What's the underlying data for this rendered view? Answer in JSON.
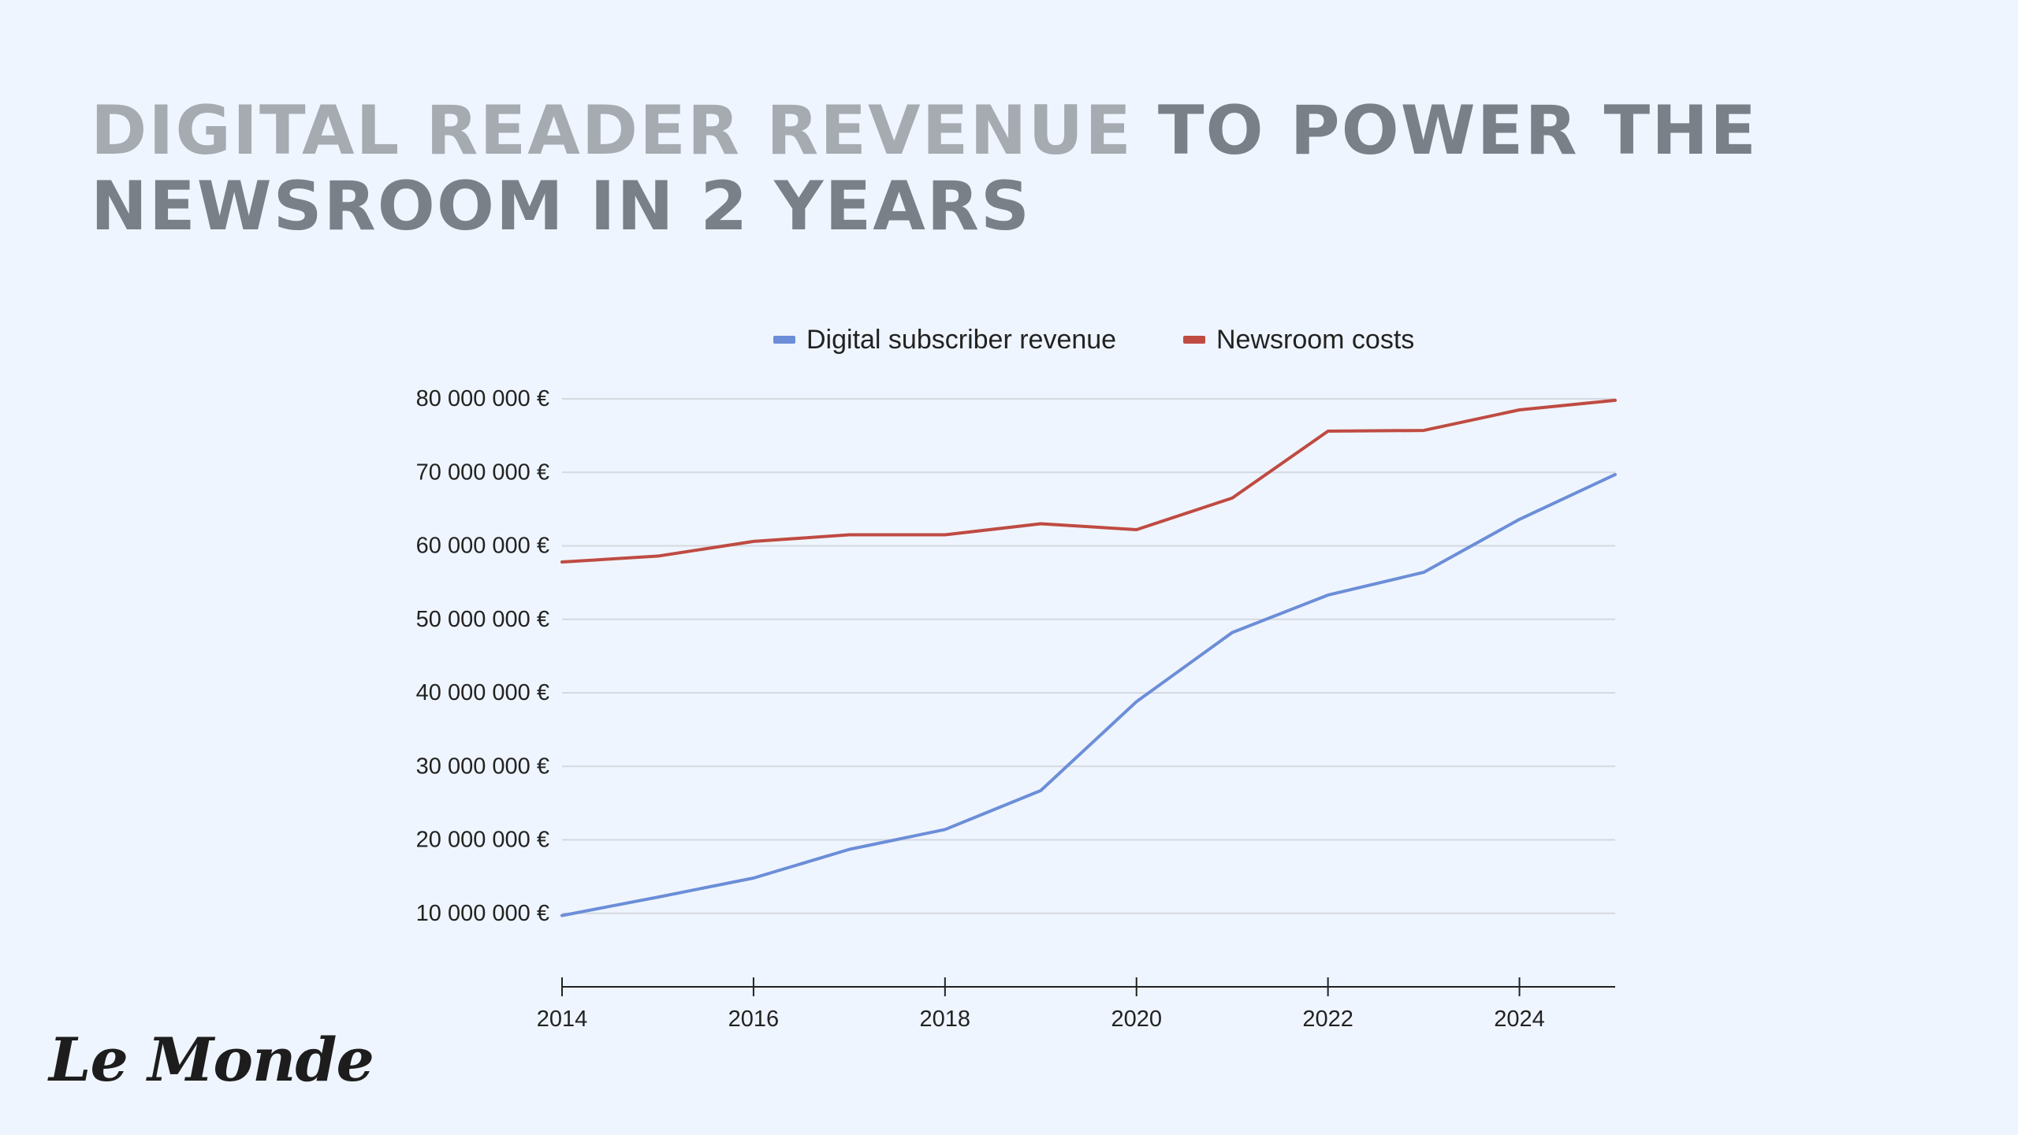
{
  "title": {
    "highlight": "DIGITAL READER REVENUE",
    "rest": "TO POWER THE NEWSROOM IN 2 YEARS"
  },
  "logo": {
    "text": "Le Monde"
  },
  "chart_data": {
    "type": "line",
    "title": "",
    "xlabel": "",
    "ylabel": "",
    "xlim": [
      2014,
      2025
    ],
    "ylim": [
      0,
      80000000
    ],
    "y_ticks": [
      10000000,
      20000000,
      30000000,
      40000000,
      50000000,
      60000000,
      70000000,
      80000000
    ],
    "y_tick_labels": [
      "10 000 000 €",
      "20 000 000 €",
      "30 000 000 €",
      "40 000 000 €",
      "50 000 000 €",
      "60 000 000 €",
      "70 000 000 €",
      "80 000 000 €"
    ],
    "x_ticks": [
      2014,
      2016,
      2018,
      2020,
      2022,
      2024
    ],
    "x_tick_labels": [
      "2014",
      "2016",
      "2018",
      "2020",
      "2022",
      "2024"
    ],
    "grid": true,
    "legend": "top-center",
    "x": [
      2014,
      2015,
      2016,
      2017,
      2018,
      2019,
      2020,
      2021,
      2022,
      2023,
      2024,
      2025
    ],
    "series": [
      {
        "name": "Digital subscriber revenue",
        "color": "#6c8ed8",
        "values": [
          9700000,
          12200000,
          14800000,
          18700000,
          21400000,
          26700000,
          38800000,
          48200000,
          53300000,
          56400000,
          63600000,
          69700000
        ]
      },
      {
        "name": "Newsroom costs",
        "color": "#bf4b42",
        "values": [
          57800000,
          58600000,
          60600000,
          61500000,
          61500000,
          63000000,
          62200000,
          66500000,
          75600000,
          75700000,
          78500000,
          79800000
        ]
      }
    ]
  }
}
